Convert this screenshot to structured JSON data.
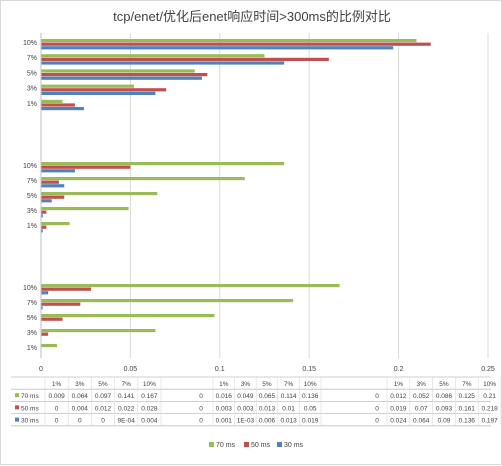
{
  "chart_data": {
    "type": "bar",
    "orientation": "horizontal",
    "title": "tcp/enet/优化后enet响应时间>300ms的比例对比",
    "categories": [
      "1%",
      "3%",
      "5%",
      "7%",
      "10%"
    ],
    "xlim": [
      0,
      0.25
    ],
    "x_ticks": [
      "0",
      "0.05",
      "0.1",
      "0.15",
      "0.2",
      "0.25"
    ],
    "grid": true,
    "legend_position": "bottom",
    "series_colors": {
      "70 ms": "#9bbb59",
      "50 ms": "#c0504d",
      "30 ms": "#4f81bd"
    },
    "groups": [
      {
        "label": "",
        "series": [
          {
            "name": "70 ms",
            "values": [
              0.009,
              0.064,
              0.097,
              0.141,
              0.167
            ],
            "labels": [
              "0.009",
              "0.064",
              "0.097",
              "0.141",
              "0.167"
            ]
          },
          {
            "name": "50 ms",
            "values": [
              0,
              0.004,
              0.012,
              0.022,
              0.028
            ],
            "labels": [
              "0",
              "0.004",
              "0.012",
              "0.022",
              "0.028"
            ]
          },
          {
            "name": "30 ms",
            "values": [
              0,
              0,
              0,
              0.0009,
              0.004
            ],
            "labels": [
              "0",
              "0",
              "0",
              "9E-04",
              "0.004"
            ]
          }
        ]
      },
      {
        "label": "0",
        "series": [
          {
            "name": "70 ms",
            "values": [
              0.016,
              0.049,
              0.065,
              0.114,
              0.136
            ],
            "labels": [
              "0.016",
              "0.049",
              "0.065",
              "0.114",
              "0.136"
            ]
          },
          {
            "name": "50 ms",
            "values": [
              0.003,
              0.003,
              0.013,
              0.01,
              0.05
            ],
            "labels": [
              "0.003",
              "0.003",
              "0.013",
              "0.01",
              "0.05"
            ]
          },
          {
            "name": "30 ms",
            "values": [
              0.001,
              0.001,
              0.006,
              0.013,
              0.019
            ],
            "labels": [
              "0.001",
              "1E-03",
              "0.006",
              "0.013",
              "0.019"
            ]
          }
        ]
      },
      {
        "label": "0",
        "series": [
          {
            "name": "70 ms",
            "values": [
              0.012,
              0.052,
              0.086,
              0.125,
              0.21
            ],
            "labels": [
              "0.012",
              "0.052",
              "0.086",
              "0.125",
              "0.21"
            ]
          },
          {
            "name": "50 ms",
            "values": [
              0.019,
              0.07,
              0.093,
              0.161,
              0.218
            ],
            "labels": [
              "0.019",
              "0.07",
              "0.093",
              "0.161",
              "0.218"
            ]
          },
          {
            "name": "30 ms",
            "values": [
              0.024,
              0.064,
              0.09,
              0.136,
              0.197
            ],
            "labels": [
              "0.024",
              "0.064",
              "0.09",
              "0.136",
              "0.197"
            ]
          }
        ]
      }
    ]
  }
}
